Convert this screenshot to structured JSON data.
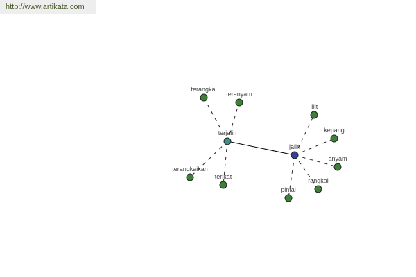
{
  "watermark": {
    "url": "http://www.artikata.com"
  },
  "graph": {
    "nodes": [
      {
        "id": "terjalin",
        "label": "terjalin",
        "color": "#3f8f8f"
      },
      {
        "id": "jalin",
        "label": "jalin",
        "color": "#3a3f9a"
      },
      {
        "id": "terangkai",
        "label": "terangkai",
        "color": "#3f7f3a"
      },
      {
        "id": "teranyam",
        "label": "teranyam",
        "color": "#3f7f3a"
      },
      {
        "id": "terangkaikan",
        "label": "terangkaikan",
        "color": "#3f7f3a"
      },
      {
        "id": "terikat",
        "label": "terikat",
        "color": "#3f7f3a"
      },
      {
        "id": "lilit",
        "label": "lilit",
        "color": "#3f7f3a"
      },
      {
        "id": "kepang",
        "label": "kepang",
        "color": "#3f7f3a"
      },
      {
        "id": "anyam",
        "label": "anyam",
        "color": "#3f7f3a"
      },
      {
        "id": "rangkai",
        "label": "rangkai",
        "color": "#3f7f3a"
      },
      {
        "id": "pintal",
        "label": "pintal",
        "color": "#3f7f3a"
      }
    ],
    "edges": [
      {
        "from": "terjalin",
        "to": "jalin",
        "style": "solid"
      },
      {
        "from": "terjalin",
        "to": "terangkai",
        "style": "dashed"
      },
      {
        "from": "terjalin",
        "to": "teranyam",
        "style": "dashed"
      },
      {
        "from": "terjalin",
        "to": "terangkaikan",
        "style": "dashed"
      },
      {
        "from": "terjalin",
        "to": "terikat",
        "style": "dashed"
      },
      {
        "from": "jalin",
        "to": "lilit",
        "style": "dashed"
      },
      {
        "from": "jalin",
        "to": "kepang",
        "style": "dashed"
      },
      {
        "from": "jalin",
        "to": "anyam",
        "style": "dashed"
      },
      {
        "from": "jalin",
        "to": "rangkai",
        "style": "dashed"
      },
      {
        "from": "jalin",
        "to": "pintal",
        "style": "dashed"
      }
    ]
  }
}
